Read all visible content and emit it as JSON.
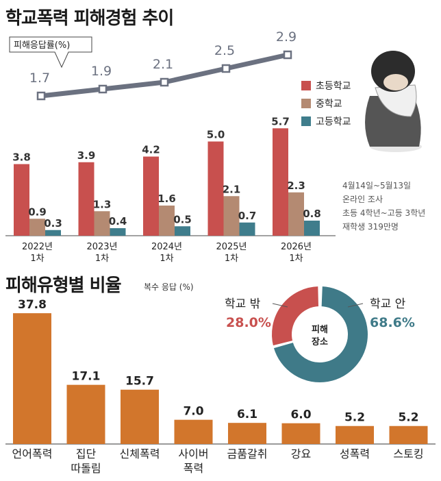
{
  "trend": {
    "title": "학교폭력 피해경험 추이",
    "line_label": "피해응답률(%)",
    "legend": [
      {
        "label": "초등학교",
        "color": "#c8504e"
      },
      {
        "label": "중학교",
        "color": "#b48a72"
      },
      {
        "label": "고등학교",
        "color": "#3f7d8c"
      }
    ],
    "note": [
      "4월14일~5월13일",
      "온라인 조사",
      "초등 4학년~고등 3학년",
      "재학생 319만명"
    ]
  },
  "types": {
    "title": "피해유형별 비율",
    "subtitle": "복수 응답 (%)"
  },
  "chart_data": [
    {
      "type": "bar",
      "title": "학교폭력 피해경험 추이",
      "categories": [
        "2022년\n1차",
        "2023년\n1차",
        "2024년\n1차",
        "2025년\n1차",
        "2026년\n1차"
      ],
      "series": [
        {
          "name": "초등학교",
          "values": [
            3.8,
            3.9,
            4.2,
            5.0,
            5.7
          ],
          "color": "#c8504e"
        },
        {
          "name": "중학교",
          "values": [
            0.9,
            1.3,
            1.6,
            2.1,
            2.3
          ],
          "color": "#b48a72"
        },
        {
          "name": "고등학교",
          "values": [
            0.3,
            0.4,
            0.5,
            0.7,
            0.8
          ],
          "color": "#3f7d8c"
        }
      ],
      "line": {
        "name": "피해응답률(%)",
        "values": [
          1.7,
          1.9,
          2.1,
          2.5,
          2.9
        ],
        "color": "#6b7180"
      }
    },
    {
      "type": "bar",
      "title": "피해유형별 비율",
      "categories": [
        "언어폭력",
        "집단\n따돌림",
        "신체폭력",
        "사이버\n폭력",
        "금품갈취",
        "강요",
        "성폭력",
        "스토킹"
      ],
      "values": [
        37.8,
        17.1,
        15.7,
        7.0,
        6.1,
        6.0,
        5.2,
        5.2
      ],
      "color": "#d2762c"
    },
    {
      "type": "pie",
      "title": "피해\n장소",
      "slices": [
        {
          "label": "학교 안",
          "value": 68.6,
          "display": "68.6%",
          "color": "#3f7a88"
        },
        {
          "label": "학교 밖",
          "value": 28.0,
          "display": "28.0%",
          "color": "#c8504e"
        }
      ]
    }
  ]
}
